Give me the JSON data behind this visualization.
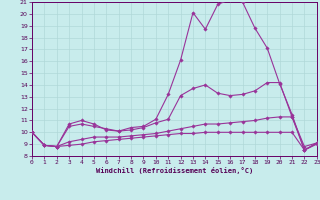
{
  "title": "",
  "xlabel": "Windchill (Refroidissement éolien,°C)",
  "ylabel": "",
  "bg_color": "#c8ecec",
  "grid_color": "#b0d8d8",
  "line_color": "#993399",
  "ylim": [
    8,
    21
  ],
  "xlim": [
    0,
    23
  ],
  "yticks": [
    8,
    9,
    10,
    11,
    12,
    13,
    14,
    15,
    16,
    17,
    18,
    19,
    20,
    21
  ],
  "xticks": [
    0,
    1,
    2,
    3,
    4,
    5,
    6,
    7,
    8,
    9,
    10,
    11,
    12,
    13,
    14,
    15,
    16,
    17,
    18,
    19,
    20,
    21,
    22,
    23
  ],
  "lines": [
    [
      10.0,
      8.9,
      8.8,
      10.7,
      11.0,
      10.7,
      10.2,
      10.1,
      10.4,
      10.5,
      11.1,
      13.2,
      16.1,
      20.1,
      18.7,
      20.8,
      21.2,
      21.0,
      18.8,
      17.1,
      14.1,
      11.5,
      8.5,
      9.1
    ],
    [
      10.0,
      8.9,
      8.8,
      10.5,
      10.7,
      10.5,
      10.3,
      10.1,
      10.2,
      10.4,
      10.8,
      11.1,
      13.1,
      13.7,
      14.0,
      13.3,
      13.1,
      13.2,
      13.5,
      14.2,
      14.2,
      11.3,
      8.8,
      9.1
    ],
    [
      10.0,
      8.9,
      8.8,
      9.2,
      9.4,
      9.6,
      9.6,
      9.6,
      9.7,
      9.8,
      9.9,
      10.1,
      10.3,
      10.5,
      10.7,
      10.7,
      10.8,
      10.9,
      11.0,
      11.2,
      11.3,
      11.3,
      8.5,
      9.1
    ],
    [
      10.0,
      8.9,
      8.8,
      8.9,
      9.0,
      9.2,
      9.3,
      9.4,
      9.5,
      9.6,
      9.7,
      9.8,
      9.9,
      9.9,
      10.0,
      10.0,
      10.0,
      10.0,
      10.0,
      10.0,
      10.0,
      10.0,
      8.5,
      9.0
    ]
  ]
}
